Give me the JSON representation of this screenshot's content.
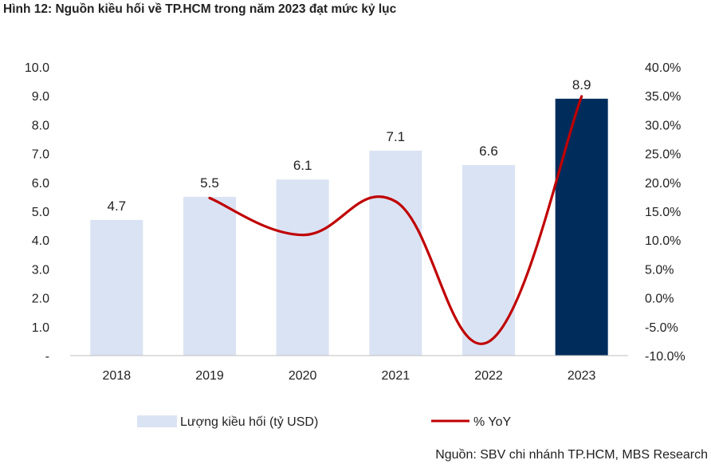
{
  "title": "Hình 12: Nguồn kiều hối về TP.HCM trong năm 2023 đạt mức kỷ lục",
  "source": "Nguồn: SBV chi nhánh TP.HCM, MBS Research",
  "chart_data": {
    "type": "bar",
    "categories": [
      "2018",
      "2019",
      "2020",
      "2021",
      "2022",
      "2023"
    ],
    "series": [
      {
        "name": "Lượng kiều hối (tỷ USD)",
        "type": "bar",
        "axis": "left",
        "values": [
          4.7,
          5.5,
          6.1,
          7.1,
          6.6,
          8.9
        ],
        "labels": [
          "4.7",
          "5.5",
          "6.1",
          "7.1",
          "6.6",
          "8.9"
        ],
        "color": "#dae3f3",
        "highlight_color": "#002c5c"
      },
      {
        "name": "% YoY",
        "type": "line",
        "axis": "right",
        "x": [
          "2019",
          "2020",
          "2021",
          "2022",
          "2023"
        ],
        "values": [
          17.3,
          10.9,
          16.7,
          -7.6,
          34.9
        ],
        "color": "#c00000"
      }
    ],
    "y_left": {
      "ylim": [
        0,
        10
      ],
      "ticks": [
        "-",
        "1.0",
        "2.0",
        "3.0",
        "4.0",
        "5.0",
        "6.0",
        "7.0",
        "8.0",
        "9.0",
        "10.0"
      ]
    },
    "y_right": {
      "ylim": [
        -10,
        40
      ],
      "ticks": [
        "-10.0%",
        "-5.0%",
        "0.0%",
        "5.0%",
        "10.0%",
        "15.0%",
        "20.0%",
        "25.0%",
        "30.0%",
        "35.0%",
        "40.0%"
      ]
    },
    "grid": false,
    "legend": "bottom"
  }
}
